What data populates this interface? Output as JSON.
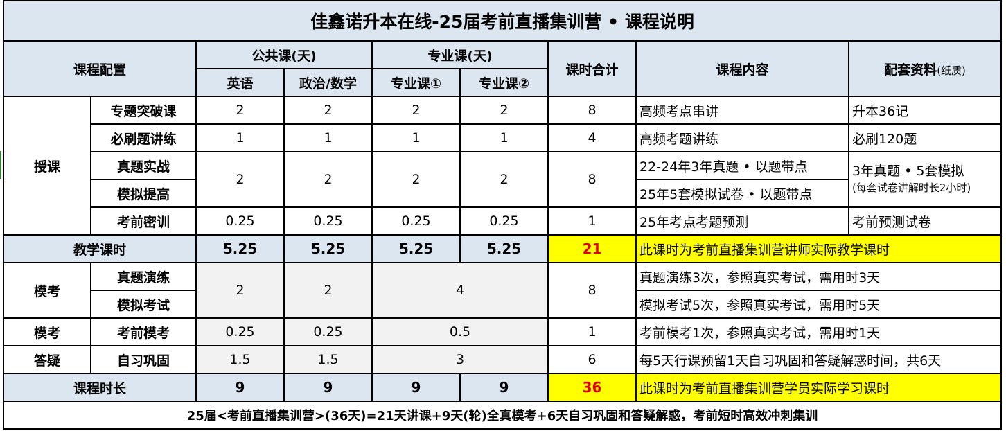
{
  "title": "佳鑫诺升本在线-25届考前直播集训营 • 课程说明",
  "header": {
    "course_config": "课程配置",
    "public_course": "公共课(天)",
    "major_course": "专业课(天)",
    "total_hours": "课时合计",
    "course_content": "课程内容",
    "materials": "配套资料",
    "materials_note": "(纸质)",
    "english": "英语",
    "politics_math": "政治/数学",
    "major1": "专业课①",
    "major2": "专业课②"
  },
  "teaching": {
    "group": "授课",
    "rows": [
      {
        "name": "专题突破课",
        "en": "2",
        "pm": "2",
        "m1": "2",
        "m2": "2",
        "total": "8",
        "content": "高频考点串讲",
        "material": "升本36记"
      },
      {
        "name": "必刷题讲练",
        "en": "1",
        "pm": "1",
        "m1": "1",
        "m2": "1",
        "total": "4",
        "content": "高频考题讲练",
        "material": "必刷120题"
      },
      {
        "name": "真题实战",
        "content": "22-24年3年真题 • 以题带点"
      },
      {
        "name": "模拟提高",
        "content": "25年5套模拟试卷 • 以题带点"
      },
      {
        "name": "考前密训",
        "en": "0.25",
        "pm": "0.25",
        "m1": "0.25",
        "m2": "0.25",
        "total": "1",
        "content": "25年考点考题预测",
        "material": "考前预测试卷"
      }
    ],
    "merged": {
      "en": "2",
      "pm": "2",
      "m1": "2",
      "m2": "2",
      "total": "8",
      "material": "3年真题 • 5套模拟",
      "material_note": "(每套试卷讲解时长2小时)"
    }
  },
  "teaching_hours": {
    "label": "教学课时",
    "en": "5.25",
    "pm": "5.25",
    "m1": "5.25",
    "m2": "5.25",
    "total": "21",
    "note": "此课时为考前直播集训营讲师实际教学课时"
  },
  "mock": {
    "group": "模考",
    "rows": [
      {
        "name": "真题演练",
        "content": "真题演练3次，参照真实考试，需用时3天"
      },
      {
        "name": "模拟考试",
        "content": "模拟考试5次，参照真实考试，需用时5天"
      }
    ],
    "en": "2",
    "pm": "2",
    "major": "4",
    "total": "8"
  },
  "pre_mock": {
    "group": "模考",
    "name": "考前模考",
    "en": "0.25",
    "pm": "0.25",
    "major": "0.5",
    "total": "1",
    "content": "考前模考1次，参照真实考试，需用时1天"
  },
  "qa": {
    "group": "答疑",
    "name": "自习巩固",
    "en": "1.5",
    "pm": "1.5",
    "major": "3",
    "total": "6",
    "content": "每5天行课预留1天自习巩固和答疑解惑时间，共6天"
  },
  "duration": {
    "label": "课程时长",
    "en": "9",
    "pm": "9",
    "m1": "9",
    "m2": "9",
    "total": "36",
    "note": "此课时为考前直播集训营学员实际学习课时"
  },
  "footer": "25届<考前直播集训营>(36天)=21天讲课+9天(轮)全真模考+6天自习巩固和答疑解惑，考前短时高效冲刺集训"
}
